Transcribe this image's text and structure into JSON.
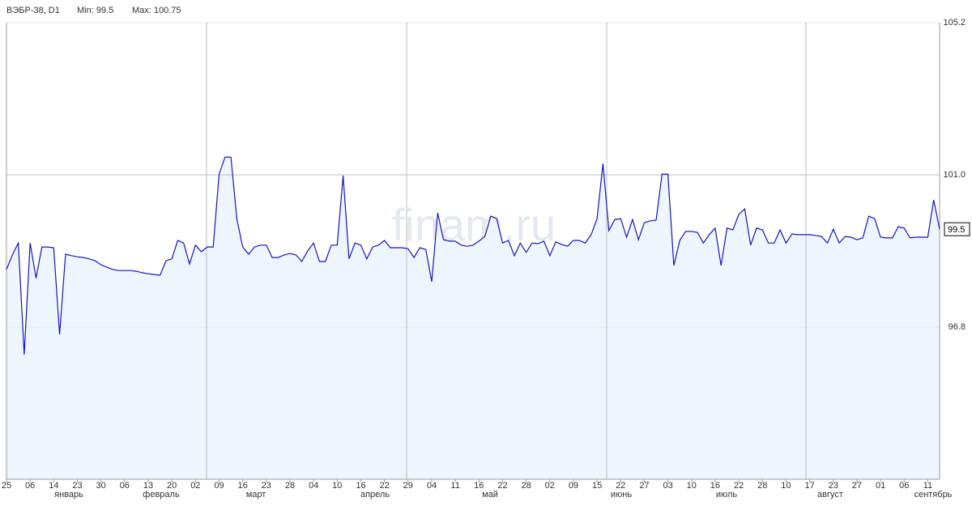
{
  "chart_data": {
    "type": "line",
    "title": "ВЭБР-38, D1",
    "subtitle": [
      "Min: 99.5",
      "Max: 100.75"
    ],
    "watermark": "finam.ru",
    "categories": [
      "25",
      null,
      null,
      null,
      "06",
      null,
      null,
      null,
      "14",
      null,
      null,
      null,
      "23",
      null,
      null,
      null,
      "30",
      null,
      null,
      null,
      "06",
      null,
      null,
      null,
      "13",
      null,
      null,
      null,
      "20",
      null,
      null,
      null,
      "02",
      null,
      null,
      null,
      "09",
      null,
      null,
      null,
      "16",
      null,
      null,
      null,
      "23",
      null,
      null,
      null,
      "28",
      null,
      null,
      null,
      "04",
      null,
      null,
      null,
      "10",
      null,
      null,
      null,
      "16",
      null,
      null,
      null,
      "22",
      null,
      null,
      null,
      "29",
      null,
      null,
      null,
      "04",
      null,
      null,
      null,
      "11",
      null,
      null,
      null,
      "16",
      null,
      null,
      null,
      "22",
      null,
      null,
      null,
      "28",
      null,
      null,
      null,
      "02",
      null,
      null,
      null,
      "09",
      null,
      null,
      null,
      "15",
      null,
      null,
      null,
      "22",
      null,
      null,
      null,
      "27",
      null,
      null,
      null,
      "03",
      null,
      null,
      null,
      "10",
      null,
      null,
      null,
      "16",
      null,
      null,
      null,
      "22",
      null,
      null,
      null,
      "28",
      null,
      null,
      null,
      "10",
      null,
      null,
      null,
      "17",
      null,
      null,
      null,
      "23",
      null,
      null,
      null,
      "27",
      null,
      null,
      null,
      "01",
      null,
      null,
      null,
      "06",
      null,
      null,
      null,
      "11",
      null,
      null
    ],
    "month_labels": [
      "январь",
      "февраль",
      "март",
      "апрель",
      "май",
      "июнь",
      "июль",
      "август",
      "сентябрь"
    ],
    "values": [
      98.39,
      98.79,
      99.12,
      96.04,
      99.12,
      98.15,
      99.01,
      99.01,
      98.99,
      96.6,
      98.81,
      98.77,
      98.74,
      98.72,
      98.68,
      98.63,
      98.52,
      98.45,
      98.39,
      98.36,
      98.36,
      98.36,
      98.34,
      98.3,
      98.27,
      98.25,
      98.23,
      98.63,
      98.68,
      99.19,
      99.12,
      98.54,
      99.06,
      98.88,
      99.01,
      99.01,
      101.02,
      101.49,
      101.49,
      99.79,
      99.01,
      98.81,
      99.01,
      99.06,
      99.06,
      98.72,
      98.72,
      98.79,
      98.83,
      98.79,
      98.61,
      98.9,
      99.12,
      98.61,
      98.61,
      99.06,
      99.06,
      100.98,
      98.68,
      99.12,
      99.06,
      98.68,
      99.01,
      99.06,
      99.19,
      98.99,
      98.99,
      98.99,
      98.96,
      98.72,
      98.99,
      98.94,
      98.05,
      99.95,
      99.21,
      99.17,
      99.17,
      99.06,
      99.03,
      99.06,
      99.17,
      99.3,
      99.86,
      99.79,
      99.12,
      99.19,
      98.77,
      99.12,
      98.86,
      99.12,
      99.1,
      99.17,
      98.77,
      99.15,
      99.08,
      99.03,
      99.19,
      99.19,
      99.12,
      99.35,
      99.79,
      101.31,
      99.46,
      99.77,
      99.79,
      99.28,
      99.77,
      99.21,
      99.68,
      99.73,
      99.75,
      101.02,
      101.02,
      98.5,
      99.19,
      99.44,
      99.44,
      99.41,
      99.12,
      99.35,
      99.53,
      98.5,
      99.53,
      99.48,
      99.91,
      100.06,
      99.06,
      99.53,
      99.48,
      99.12,
      99.12,
      99.48,
      99.12,
      99.37,
      99.35,
      99.35,
      99.35,
      99.33,
      99.3,
      99.12,
      99.5,
      99.12,
      99.3,
      99.28,
      99.21,
      99.26,
      99.86,
      99.79,
      99.28,
      99.26,
      99.26,
      99.57,
      99.53,
      99.26,
      99.28,
      99.28,
      99.28,
      100.31,
      99.5
    ],
    "current_value": 99.5,
    "color": "#1414c8",
    "fill": "#eef5fc",
    "ylim": [
      92.6,
      105.2
    ],
    "yticks": [
      96.8,
      {
        "value": 101,
        "label": "101.0"
      },
      105.2
    ],
    "grid": true
  }
}
